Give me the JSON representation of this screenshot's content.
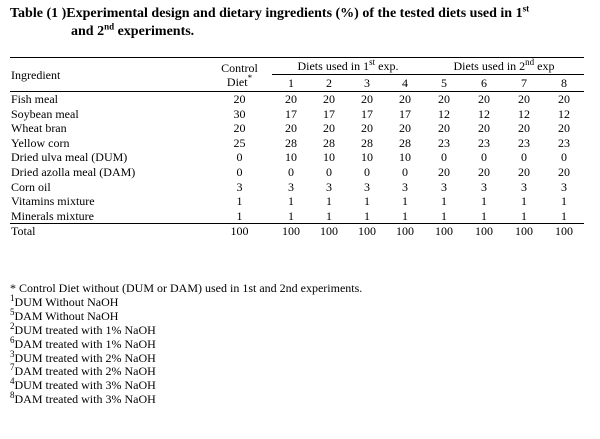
{
  "title": {
    "line1_prefix": "Table (1 )Experimental design and dietary ingredients (%) of the tested diets used in 1",
    "line1_sup": "st",
    "line2_prefix": "and 2",
    "line2_sup": "nd",
    "line2_suffix": " experiments."
  },
  "header": {
    "ingredient": "Ingredient",
    "control_line1": "Control",
    "control_line2": "Diet",
    "control_sup": "*",
    "group1_prefix": "Diets used in 1",
    "group1_sup": "st",
    "group1_suffix": " exp.",
    "group2_prefix": "Diets used in 2",
    "group2_sup": "nd",
    "group2_suffix": " exp",
    "diet_numbers": [
      "1",
      "2",
      "3",
      "4",
      "5",
      "6",
      "7",
      "8"
    ]
  },
  "rows": [
    {
      "name": "Fish meal",
      "values": [
        "20",
        "20",
        "20",
        "20",
        "20",
        "20",
        "20",
        "20",
        "20"
      ]
    },
    {
      "name": "Soybean meal",
      "values": [
        "30",
        "17",
        "17",
        "17",
        "17",
        "12",
        "12",
        "12",
        "12"
      ]
    },
    {
      "name": "Wheat bran",
      "values": [
        "20",
        "20",
        "20",
        "20",
        "20",
        "20",
        "20",
        "20",
        "20"
      ]
    },
    {
      "name": "Yellow corn",
      "values": [
        "25",
        "28",
        "28",
        "28",
        "28",
        "23",
        "23",
        "23",
        "23"
      ]
    },
    {
      "name": "Dried ulva meal (DUM)",
      "values": [
        "0",
        "10",
        "10",
        "10",
        "10",
        "0",
        "0",
        "0",
        "0"
      ]
    },
    {
      "name": "Dried azolla meal (DAM)",
      "values": [
        "0",
        "0",
        "0",
        "0",
        "0",
        "20",
        "20",
        "20",
        "20"
      ]
    },
    {
      "name": "Corn oil",
      "values": [
        "3",
        "3",
        "3",
        "3",
        "3",
        "3",
        "3",
        "3",
        "3"
      ]
    },
    {
      "name": "Vitamins mixture",
      "values": [
        "1",
        "1",
        "1",
        "1",
        "1",
        "1",
        "1",
        "1",
        "1"
      ]
    },
    {
      "name": "Minerals mixture",
      "values": [
        "1",
        "1",
        "1",
        "1",
        "1",
        "1",
        "1",
        "1",
        "1"
      ]
    }
  ],
  "total": {
    "name": "Total",
    "values": [
      "100",
      "100",
      "100",
      "100",
      "100",
      "100",
      "100",
      "100",
      "100"
    ]
  },
  "notes": [
    {
      "sup": "",
      "text": "* Control Diet  without (DUM or  DAM) used in 1st and 2nd experiments."
    },
    {
      "sup": "1",
      "text": "DUM Without NaOH"
    },
    {
      "sup": "5",
      "text": "DAM Without NaOH"
    },
    {
      "sup": "2",
      "text": "DUM treated with 1% NaOH"
    },
    {
      "sup": "6",
      "text": "DAM treated with 1% NaOH"
    },
    {
      "sup": "3",
      "text": "DUM treated with 2% NaOH"
    },
    {
      "sup": "7",
      "text": "DAM treated with 2% NaOH"
    },
    {
      "sup": "4",
      "text": "DUM treated with 3% NaOH"
    },
    {
      "sup": "8",
      "text": "DAM treated with 3% NaOH"
    }
  ]
}
